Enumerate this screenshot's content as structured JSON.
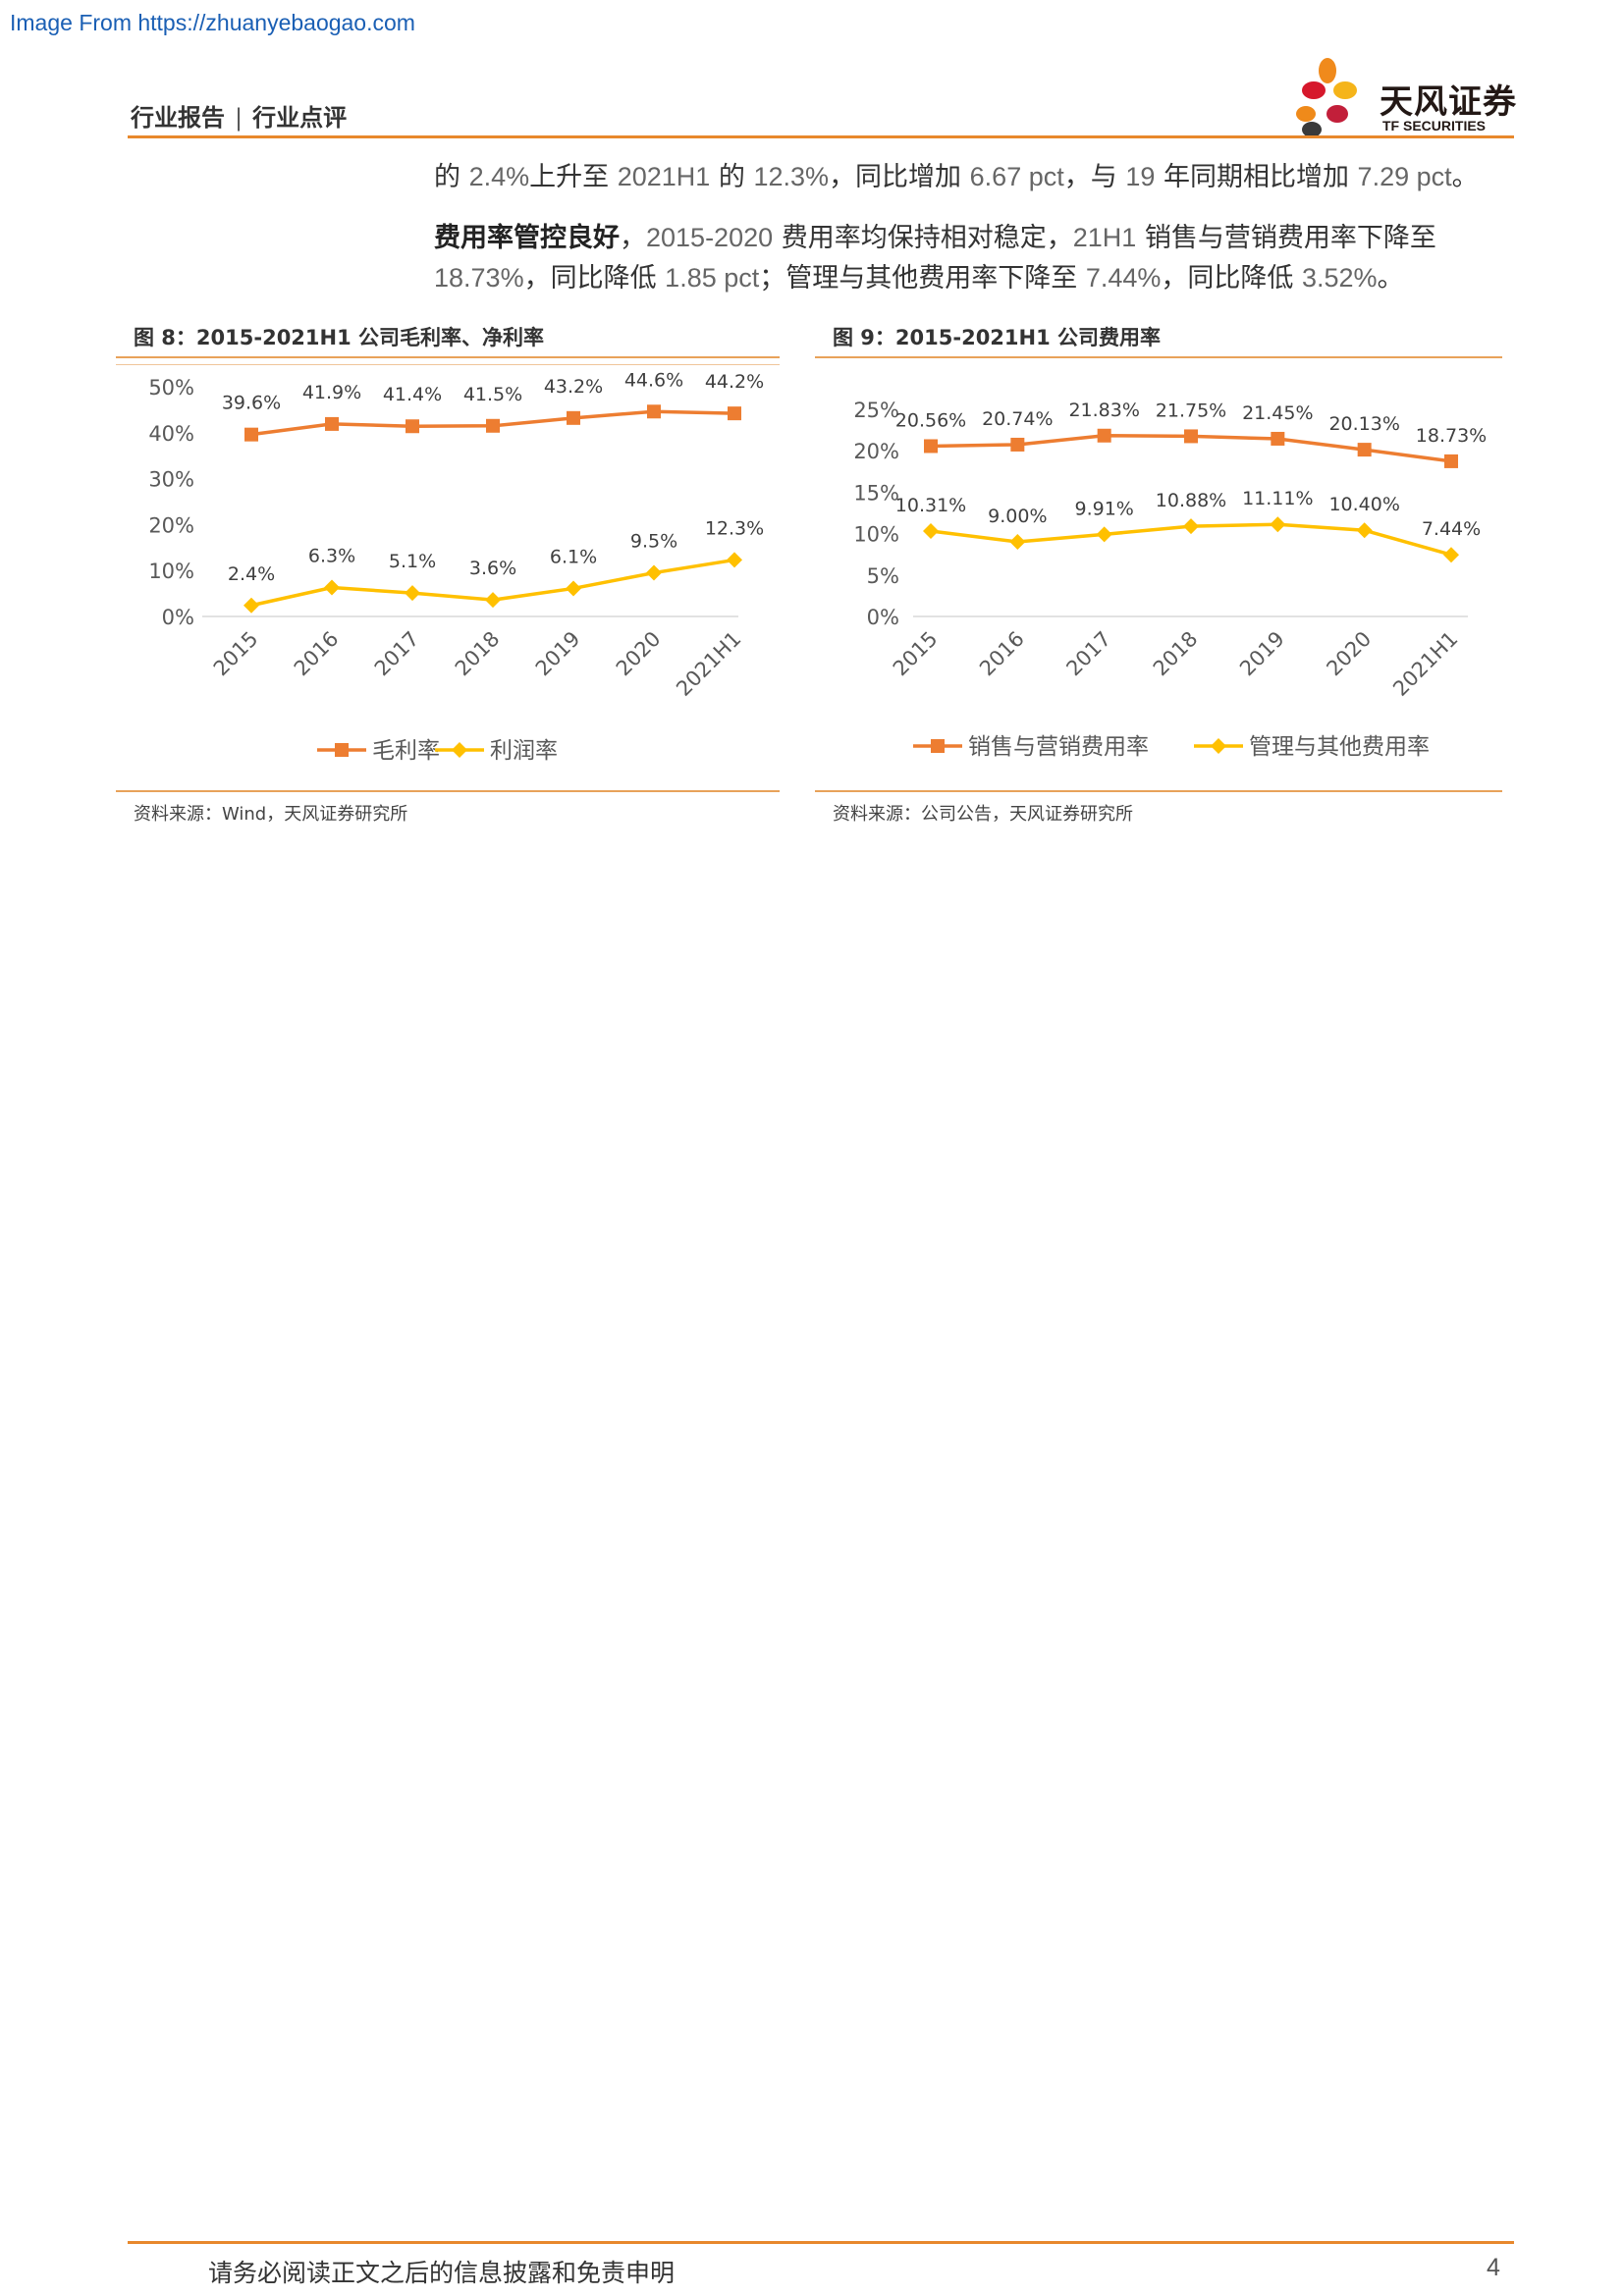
{
  "watermark": "Image From https://zhuanyebaogao.com",
  "header": {
    "category": "行业报告",
    "separator": "|",
    "subcategory": "行业点评",
    "logo_name": "天风证券",
    "logo_sub": "TF SECURITIES"
  },
  "paragraph1": {
    "t1": "的 ",
    "n1": "2.4%",
    "t2": "上升至 ",
    "n2": "2021H1",
    "t3": " 的 ",
    "n3": "12.3%",
    "t4": "，同比增加 ",
    "n4": "6.67 pct",
    "t5": "，与 ",
    "n5": "19",
    "t6": " 年同期相比增加 ",
    "n6": "7.29 pct",
    "t7": "。"
  },
  "paragraph2": {
    "lead": "费用率管控良好",
    "t1": "，",
    "n1": "2015-2020",
    "t2": " 费用率均保持相对稳定，",
    "n2": "21H1",
    "t3": " 销售与营销费用率下降至",
    "n3": "18.73%",
    "t4": "，同比降低 ",
    "n4": "1.85 pct",
    "t5": "；管理与其他费用率下降至 ",
    "n5": "7.44%",
    "t6": "，同比降低 ",
    "n6": "3.52%",
    "t7": "。"
  },
  "figure8": {
    "title": "图 8：2015-2021H1 公司毛利率、净利率",
    "source": "资料来源：Wind，天风证券研究所"
  },
  "figure9": {
    "title": "图 9：2015-2021H1 公司费用率",
    "source": "资料来源：公司公告，天风证券研究所"
  },
  "chart_data": [
    {
      "type": "line",
      "categories": [
        "2015",
        "2016",
        "2017",
        "2018",
        "2019",
        "2020",
        "2021H1"
      ],
      "y_ticks": [
        "0%",
        "10%",
        "20%",
        "30%",
        "40%",
        "50%"
      ],
      "ylim": [
        0,
        50
      ],
      "series": [
        {
          "name": "毛利率",
          "color": "#ed7d31",
          "marker": "square",
          "values": [
            39.6,
            41.9,
            41.4,
            41.5,
            43.2,
            44.6,
            44.2
          ],
          "labels": [
            "39.6%",
            "41.9%",
            "41.4%",
            "41.5%",
            "43.2%",
            "44.6%",
            "44.2%"
          ]
        },
        {
          "name": "利润率",
          "color": "#ffc000",
          "marker": "diamond",
          "values": [
            2.4,
            6.3,
            5.1,
            3.6,
            6.1,
            9.5,
            12.3
          ],
          "labels": [
            "2.4%",
            "6.3%",
            "5.1%",
            "3.6%",
            "6.1%",
            "9.5%",
            "12.3%"
          ]
        }
      ],
      "grid": false,
      "legend": "bottom"
    },
    {
      "type": "line",
      "categories": [
        "2015",
        "2016",
        "2017",
        "2018",
        "2019",
        "2020",
        "2021H1"
      ],
      "y_ticks": [
        "0%",
        "5%",
        "10%",
        "15%",
        "20%",
        "25%"
      ],
      "ylim": [
        0,
        25
      ],
      "series": [
        {
          "name": "销售与营销费用率",
          "color": "#ed7d31",
          "marker": "square",
          "values": [
            20.56,
            20.74,
            21.83,
            21.75,
            21.45,
            20.13,
            18.73
          ],
          "labels": [
            "20.56%",
            "20.74%",
            "21.83%",
            "21.75%",
            "21.45%",
            "20.13%",
            "18.73%"
          ]
        },
        {
          "name": "管理与其他费用率",
          "color": "#ffc000",
          "marker": "diamond",
          "values": [
            10.31,
            9.0,
            9.91,
            10.88,
            11.11,
            10.4,
            7.44
          ],
          "labels": [
            "10.31%",
            "9.00%",
            "9.91%",
            "10.88%",
            "11.11%",
            "10.40%",
            "7.44%"
          ]
        }
      ],
      "grid": false,
      "legend": "bottom"
    }
  ],
  "footer": {
    "disclaimer": "请务必阅读正文之后的信息披露和免责申明",
    "page": "4"
  }
}
